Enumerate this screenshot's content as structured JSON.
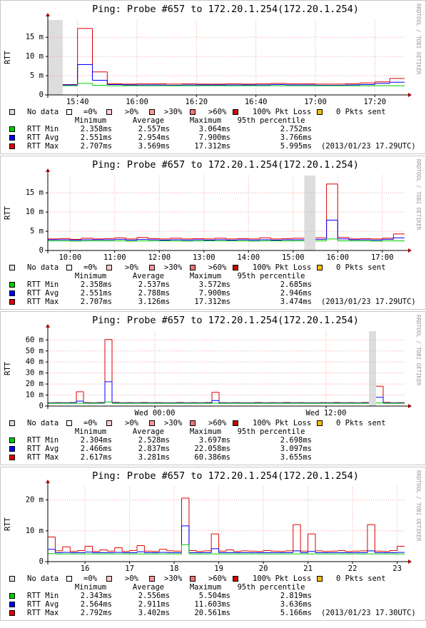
{
  "chart_data": [
    {
      "type": "line",
      "title": "Ping: Probe #657 to 172.20.1.254(172.20.1.254)",
      "y_label": "RTT",
      "watermark": "RRDTOOL / TOBI OETIKER",
      "categories": [
        null,
        null,
        "15:40",
        null,
        null,
        null,
        "16:00",
        null,
        null,
        null,
        "16:20",
        null,
        null,
        null,
        "16:40",
        null,
        null,
        null,
        "17:00",
        null,
        null,
        null,
        "17:20",
        null
      ],
      "series": [
        {
          "name": "RTT Max",
          "color": "#dd0000",
          "values": [
            null,
            2.7,
            17.3,
            6.0,
            2.9,
            2.8,
            2.9,
            2.9,
            2.8,
            2.9,
            2.8,
            2.8,
            2.9,
            2.8,
            2.9,
            3.0,
            2.9,
            2.9,
            2.8,
            2.8,
            2.9,
            3.1,
            3.4,
            4.3
          ]
        },
        {
          "name": "RTT Avg",
          "color": "#0000ff",
          "values": [
            null,
            2.6,
            7.9,
            3.8,
            2.7,
            2.6,
            2.6,
            2.6,
            2.5,
            2.6,
            2.6,
            2.6,
            2.6,
            2.6,
            2.6,
            2.7,
            2.6,
            2.6,
            2.5,
            2.5,
            2.6,
            2.7,
            3.0,
            3.3
          ]
        },
        {
          "name": "RTT Min",
          "color": "#00cc00",
          "values": [
            null,
            2.4,
            3.0,
            2.5,
            2.4,
            2.4,
            2.4,
            2.4,
            2.4,
            2.4,
            2.4,
            2.4,
            2.4,
            2.4,
            2.4,
            2.4,
            2.4,
            2.4,
            2.4,
            2.4,
            2.4,
            2.4,
            2.4,
            2.4
          ]
        }
      ],
      "ylim": [
        0,
        19.5
      ],
      "yticks": [
        0,
        {
          "value": 5,
          "label": "5 m"
        },
        {
          "value": 10,
          "label": "10 m"
        },
        {
          "value": 15,
          "label": "15 m"
        }
      ],
      "grid": true,
      "loss_legend": [
        {
          "label": "No data",
          "color": "#dddddd"
        },
        {
          "label": "=0%",
          "color": "#ffffff"
        },
        {
          "label": ">0%",
          "color": "#ffcccc"
        },
        {
          "label": ">30%",
          "color": "#ff9999"
        },
        {
          "label": ">60%",
          "color": "#ee7777"
        },
        {
          "label": "100% Pkt Loss",
          "color": "#cc0000"
        },
        {
          "label": "0 Pkts sent",
          "color": "#ffbb00"
        }
      ],
      "stats": {
        "headers": [
          "Minimum",
          "Average",
          "Maximum",
          "95th percentile"
        ],
        "row_names": [
          "RTT Min",
          "RTT Avg",
          "RTT Max"
        ],
        "row_colors": [
          "#00cc00",
          "#0000ff",
          "#dd0000"
        ],
        "rows": [
          [
            "2.358ms",
            "2.557ms",
            "3.064ms",
            "2.752ms"
          ],
          [
            "2.551ms",
            "2.954ms",
            "7.900ms",
            "3.766ms"
          ],
          [
            "2.707ms",
            "3.569ms",
            "17.312ms",
            "5.995ms"
          ]
        ],
        "note": "(2013/01/23 17.29UTC)"
      }
    },
    {
      "type": "line",
      "title": "Ping: Probe #657 to 172.20.1.254(172.20.1.254)",
      "y_label": "RTT",
      "watermark": "RRDTOOL / TOBI OETIKER",
      "categories": [
        null,
        null,
        "10:00",
        null,
        null,
        null,
        "11:00",
        null,
        null,
        null,
        "12:00",
        null,
        null,
        null,
        "13:00",
        null,
        null,
        null,
        "14:00",
        null,
        null,
        null,
        "15:00",
        null,
        null,
        null,
        "16:00",
        null,
        null,
        null,
        "17:00",
        null
      ],
      "series": [
        {
          "name": "RTT Max",
          "color": "#dd0000",
          "values": [
            3.0,
            3.1,
            2.9,
            3.2,
            3.0,
            3.1,
            3.3,
            3.0,
            3.4,
            3.1,
            3.0,
            3.2,
            3.0,
            3.1,
            3.0,
            3.2,
            3.0,
            3.1,
            3.0,
            3.3,
            3.0,
            3.1,
            3.2,
            null,
            3.3,
            17.3,
            3.4,
            3.0,
            3.1,
            3.0,
            3.2,
            4.3
          ]
        },
        {
          "name": "RTT Avg",
          "color": "#0000ff",
          "values": [
            2.8,
            2.8,
            2.7,
            2.8,
            2.8,
            2.8,
            2.9,
            2.7,
            2.9,
            2.8,
            2.7,
            2.8,
            2.7,
            2.8,
            2.7,
            2.8,
            2.7,
            2.8,
            2.7,
            2.8,
            2.7,
            2.8,
            2.8,
            null,
            2.9,
            7.9,
            3.0,
            2.8,
            2.8,
            2.7,
            2.9,
            3.3
          ]
        },
        {
          "name": "RTT Min",
          "color": "#00cc00",
          "values": [
            2.5,
            2.5,
            2.4,
            2.5,
            2.5,
            2.5,
            2.5,
            2.4,
            2.5,
            2.5,
            2.5,
            2.5,
            2.4,
            2.5,
            2.5,
            2.5,
            2.5,
            2.5,
            2.4,
            2.5,
            2.5,
            2.5,
            2.5,
            null,
            2.5,
            3.0,
            2.5,
            2.5,
            2.5,
            2.4,
            2.5,
            2.5
          ]
        }
      ],
      "ylim": [
        0,
        19.5
      ],
      "yticks": [
        0,
        {
          "value": 5,
          "label": "5 m"
        },
        {
          "value": 10,
          "label": "10 m"
        },
        {
          "value": 15,
          "label": "15 m"
        }
      ],
      "grid": true,
      "loss_legend": [
        {
          "label": "No data",
          "color": "#dddddd"
        },
        {
          "label": "=0%",
          "color": "#ffffff"
        },
        {
          "label": ">0%",
          "color": "#ffcccc"
        },
        {
          "label": ">30%",
          "color": "#ff9999"
        },
        {
          "label": ">60%",
          "color": "#ee7777"
        },
        {
          "label": "100% Pkt Loss",
          "color": "#cc0000"
        },
        {
          "label": "0 Pkts sent",
          "color": "#ffbb00"
        }
      ],
      "stats": {
        "headers": [
          "Minimum",
          "Average",
          "Maximum",
          "95th percentile"
        ],
        "row_names": [
          "RTT Min",
          "RTT Avg",
          "RTT Max"
        ],
        "row_colors": [
          "#00cc00",
          "#0000ff",
          "#dd0000"
        ],
        "rows": [
          [
            "2.358ms",
            "2.537ms",
            "3.572ms",
            "2.685ms"
          ],
          [
            "2.551ms",
            "2.788ms",
            "7.900ms",
            "2.946ms"
          ],
          [
            "2.707ms",
            "3.126ms",
            "17.312ms",
            "3.474ms"
          ]
        ],
        "note": "(2013/01/23 17.29UTC)"
      }
    },
    {
      "type": "line",
      "title": "Ping: Probe #657 to 172.20.1.254(172.20.1.254)",
      "y_label": "RTT",
      "watermark": "RRDTOOL / TOBI OETIKER",
      "categories": [
        null,
        null,
        null,
        null,
        null,
        null,
        null,
        null,
        null,
        null,
        null,
        null,
        null,
        null,
        null,
        "Wed 00:00",
        null,
        null,
        null,
        null,
        null,
        null,
        null,
        null,
        null,
        null,
        null,
        null,
        null,
        null,
        null,
        null,
        null,
        null,
        null,
        null,
        null,
        null,
        null,
        "Wed 12:00",
        null,
        null,
        null,
        null,
        null,
        null,
        null,
        null,
        null,
        null
      ],
      "series": [
        {
          "name": "RTT Max",
          "color": "#dd0000",
          "values": [
            3.0,
            3.1,
            3.0,
            3.2,
            13.0,
            3.1,
            3.0,
            3.2,
            60.4,
            3.3,
            3.0,
            3.1,
            3.0,
            3.2,
            3.0,
            3.1,
            3.0,
            3.0,
            3.2,
            3.0,
            3.1,
            3.0,
            3.2,
            12.5,
            3.1,
            3.0,
            3.1,
            3.0,
            3.0,
            3.2,
            3.0,
            3.1,
            3.0,
            3.2,
            3.0,
            3.1,
            3.0,
            3.0,
            3.1,
            3.0,
            3.2,
            3.0,
            3.1,
            3.0,
            3.2,
            null,
            18.0,
            3.3,
            3.0,
            3.1
          ]
        },
        {
          "name": "RTT Avg",
          "color": "#0000ff",
          "values": [
            2.8,
            2.8,
            2.8,
            2.9,
            4.5,
            2.8,
            2.8,
            2.9,
            22.1,
            2.9,
            2.8,
            2.8,
            2.8,
            2.9,
            2.8,
            2.8,
            2.8,
            2.8,
            2.9,
            2.8,
            2.8,
            2.8,
            2.9,
            5.0,
            2.8,
            2.8,
            2.8,
            2.8,
            2.8,
            2.9,
            2.8,
            2.8,
            2.8,
            2.9,
            2.8,
            2.8,
            2.8,
            2.8,
            2.8,
            2.8,
            2.9,
            2.8,
            2.8,
            2.8,
            2.9,
            null,
            8.0,
            2.9,
            2.8,
            2.8
          ]
        },
        {
          "name": "RTT Min",
          "color": "#00cc00",
          "values": [
            2.5,
            2.5,
            2.5,
            2.5,
            2.6,
            2.5,
            2.5,
            2.5,
            3.7,
            2.5,
            2.5,
            2.5,
            2.5,
            2.5,
            2.5,
            2.5,
            2.5,
            2.5,
            2.5,
            2.5,
            2.5,
            2.5,
            2.5,
            2.6,
            2.5,
            2.5,
            2.5,
            2.5,
            2.5,
            2.5,
            2.5,
            2.5,
            2.5,
            2.5,
            2.5,
            2.5,
            2.5,
            2.5,
            2.5,
            2.5,
            2.5,
            2.5,
            2.5,
            2.5,
            2.5,
            null,
            2.8,
            2.5,
            2.5,
            2.5
          ]
        }
      ],
      "ylim": [
        0,
        68
      ],
      "yticks": [
        0,
        {
          "value": 10,
          "label": "10 m"
        },
        {
          "value": 20,
          "label": "20 m"
        },
        {
          "value": 30,
          "label": "30 m"
        },
        {
          "value": 40,
          "label": "40 m"
        },
        {
          "value": 50,
          "label": "50 m"
        },
        {
          "value": 60,
          "label": "60 m"
        }
      ],
      "grid": true,
      "loss_legend": [
        {
          "label": "No data",
          "color": "#dddddd"
        },
        {
          "label": "=0%",
          "color": "#ffffff"
        },
        {
          "label": ">0%",
          "color": "#ffcccc"
        },
        {
          "label": ">30%",
          "color": "#ff9999"
        },
        {
          "label": ">60%",
          "color": "#ee7777"
        },
        {
          "label": "100% Pkt Loss",
          "color": "#cc0000"
        },
        {
          "label": "0 Pkts sent",
          "color": "#ffbb00"
        }
      ],
      "stats": {
        "headers": [
          "Minimum",
          "Average",
          "Maximum",
          "95th percentile"
        ],
        "row_names": [
          "RTT Min",
          "RTT Avg",
          "RTT Max"
        ],
        "row_colors": [
          "#00cc00",
          "#0000ff",
          "#dd0000"
        ],
        "rows": [
          [
            "2.304ms",
            "2.528ms",
            "3.697ms",
            "2.698ms"
          ],
          [
            "2.466ms",
            "2.837ms",
            "22.058ms",
            "3.097ms"
          ],
          [
            "2.617ms",
            "3.281ms",
            "60.386ms",
            "3.655ms"
          ]
        ]
      }
    },
    {
      "type": "line",
      "title": "Ping: Probe #657 to 172.20.1.254(172.20.1.254)",
      "y_label": "RTT",
      "watermark": "RRDTOOL / TOBI OETIKER",
      "categories": [
        null,
        null,
        null,
        null,
        null,
        "16",
        null,
        null,
        null,
        null,
        null,
        "17",
        null,
        null,
        null,
        null,
        null,
        "18",
        null,
        null,
        null,
        null,
        null,
        "19",
        null,
        null,
        null,
        null,
        null,
        "20",
        null,
        null,
        null,
        null,
        null,
        "21",
        null,
        null,
        null,
        null,
        null,
        "22",
        null,
        null,
        null,
        null,
        null,
        "23"
      ],
      "series": [
        {
          "name": "RTT Max",
          "color": "#dd0000",
          "values": [
            8.0,
            3.5,
            4.8,
            3.3,
            3.6,
            5.0,
            3.3,
            3.8,
            3.4,
            4.5,
            3.3,
            3.6,
            5.2,
            3.4,
            3.3,
            4.0,
            3.5,
            3.4,
            20.6,
            3.6,
            3.3,
            3.5,
            9.0,
            3.4,
            3.8,
            3.3,
            3.5,
            3.4,
            3.3,
            3.6,
            3.4,
            3.3,
            3.5,
            12.0,
            3.4,
            9.0,
            3.5,
            3.3,
            3.4,
            3.6,
            3.3,
            3.4,
            3.5,
            12.0,
            3.4,
            3.3,
            3.6,
            5.0
          ]
        },
        {
          "name": "RTT Avg",
          "color": "#0000ff",
          "values": [
            4.0,
            2.9,
            3.0,
            2.9,
            2.9,
            3.1,
            2.9,
            2.9,
            2.9,
            3.0,
            2.9,
            2.9,
            3.2,
            2.9,
            2.9,
            3.0,
            2.9,
            2.9,
            11.6,
            2.9,
            2.9,
            2.9,
            4.2,
            2.9,
            2.9,
            2.9,
            2.9,
            2.9,
            2.9,
            2.9,
            2.9,
            2.9,
            2.9,
            3.5,
            2.9,
            3.3,
            2.9,
            2.9,
            2.9,
            2.9,
            2.9,
            2.9,
            2.9,
            3.5,
            2.9,
            2.9,
            2.9,
            3.0
          ]
        },
        {
          "name": "RTT Min",
          "color": "#00cc00",
          "values": [
            2.6,
            2.5,
            2.5,
            2.5,
            2.5,
            2.5,
            2.5,
            2.5,
            2.5,
            2.5,
            2.5,
            2.5,
            2.5,
            2.5,
            2.5,
            2.5,
            2.5,
            2.5,
            5.5,
            2.5,
            2.5,
            2.5,
            2.5,
            2.5,
            2.5,
            2.5,
            2.5,
            2.5,
            2.5,
            2.5,
            2.5,
            2.5,
            2.5,
            2.5,
            2.5,
            2.5,
            2.5,
            2.5,
            2.5,
            2.5,
            2.5,
            2.5,
            2.5,
            2.5,
            2.5,
            2.5,
            2.5,
            2.5
          ]
        }
      ],
      "ylim": [
        0,
        24.3
      ],
      "yticks": [
        0,
        {
          "value": 10,
          "label": "10 m"
        },
        {
          "value": 20,
          "label": "20 m"
        }
      ],
      "grid": true,
      "loss_legend": [
        {
          "label": "No data",
          "color": "#dddddd"
        },
        {
          "label": "=0%",
          "color": "#ffffff"
        },
        {
          "label": ">0%",
          "color": "#ffcccc"
        },
        {
          "label": ">30%",
          "color": "#ff9999"
        },
        {
          "label": ">60%",
          "color": "#ee7777"
        },
        {
          "label": "100% Pkt Loss",
          "color": "#cc0000"
        },
        {
          "label": "0 Pkts sent",
          "color": "#ffbb00"
        }
      ],
      "stats": {
        "headers": [
          "Minimum",
          "Average",
          "Maximum",
          "95th percentile"
        ],
        "row_names": [
          "RTT Min",
          "RTT Avg",
          "RTT Max"
        ],
        "row_colors": [
          "#00cc00",
          "#0000ff",
          "#dd0000"
        ],
        "rows": [
          [
            "2.343ms",
            "2.556ms",
            "5.504ms",
            "2.819ms"
          ],
          [
            "2.564ms",
            "2.911ms",
            "11.603ms",
            "3.636ms"
          ],
          [
            "2.792ms",
            "3.402ms",
            "20.561ms",
            "5.166ms"
          ]
        ],
        "note": "(2013/01/23 17.30UTC)"
      }
    }
  ]
}
